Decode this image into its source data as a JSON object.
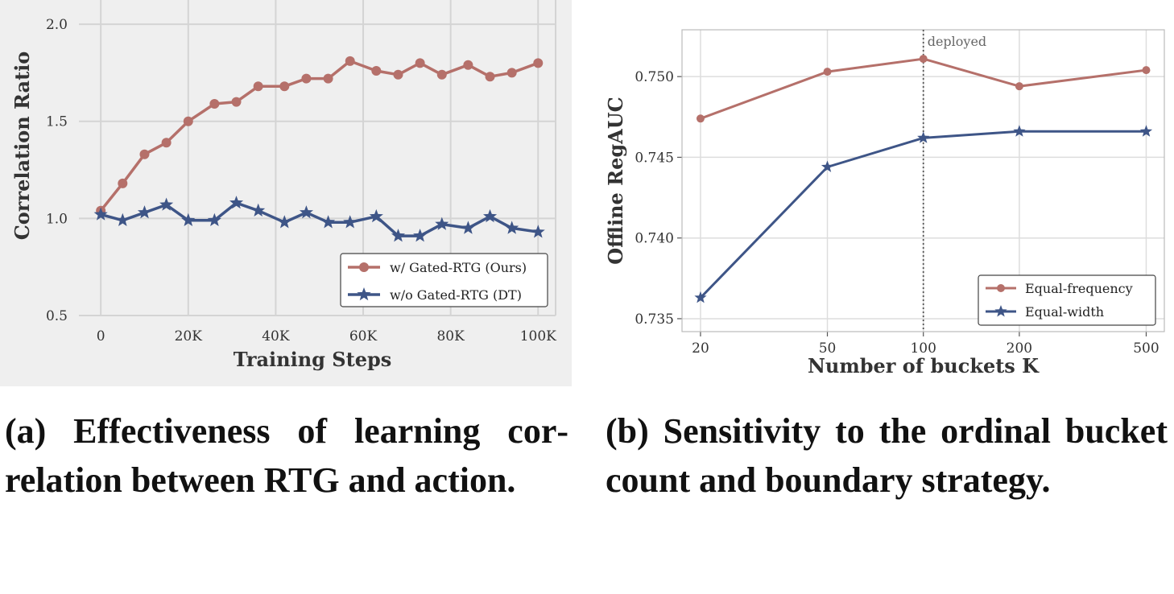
{
  "chart_data": [
    {
      "type": "line",
      "x": [
        0,
        5000,
        10000,
        15000,
        20000,
        26000,
        31000,
        36000,
        42000,
        47000,
        52000,
        57000,
        63000,
        68000,
        73000,
        78000,
        84000,
        89000,
        94000,
        100000
      ],
      "x_ticks": [
        0,
        20000,
        40000,
        60000,
        80000,
        100000
      ],
      "x_tick_labels": [
        "0",
        "20K",
        "40K",
        "60K",
        "80K",
        "100K"
      ],
      "y_ticks": [
        0.5,
        1.0,
        1.5,
        2.0
      ],
      "y_tick_labels": [
        "0.5",
        "1.0",
        "1.5",
        "2.0"
      ],
      "series": [
        {
          "name": "w/ Gated-RTG (Ours)",
          "color": "#b5706a",
          "marker": "circle",
          "values": [
            1.04,
            1.18,
            1.33,
            1.39,
            1.5,
            1.59,
            1.6,
            1.68,
            1.68,
            1.72,
            1.72,
            1.81,
            1.76,
            1.74,
            1.8,
            1.74,
            1.79,
            1.73,
            1.75,
            1.8
          ]
        },
        {
          "name": "w/o Gated-RTG (DT)",
          "color": "#3e5587",
          "marker": "star",
          "values": [
            1.02,
            0.99,
            1.03,
            1.07,
            0.99,
            0.99,
            1.08,
            1.04,
            0.98,
            1.03,
            0.98,
            0.98,
            1.01,
            0.91,
            0.91,
            0.97,
            0.95,
            1.01,
            0.95,
            0.93
          ]
        }
      ],
      "xlabel": "Training Steps",
      "ylabel": "Correlation Ratio",
      "xlim": [
        -5000,
        104000
      ],
      "ylim": [
        0.5,
        2.05
      ],
      "grid": true,
      "legend": "bottom-right"
    },
    {
      "type": "line",
      "x": [
        20,
        50,
        100,
        200,
        500
      ],
      "x_scale": "log",
      "x_tick_labels": [
        "20",
        "50",
        "100",
        "200",
        "500"
      ],
      "y_ticks": [
        0.735,
        0.74,
        0.745,
        0.75
      ],
      "y_tick_labels": [
        "0.735",
        "0.740",
        "0.745",
        "0.750"
      ],
      "series": [
        {
          "name": "Equal-frequency",
          "color": "#b5706a",
          "marker": "circle",
          "values": [
            0.7474,
            0.7503,
            0.7511,
            0.7494,
            0.7504
          ]
        },
        {
          "name": "Equal-width",
          "color": "#3e5587",
          "marker": "star",
          "values": [
            0.7363,
            0.7444,
            0.7462,
            0.7466,
            0.7466
          ]
        }
      ],
      "annotation": {
        "x": 100,
        "label": "deployed"
      },
      "xlabel": "Number of buckets K",
      "ylabel": "Offline RegAUC",
      "xlim": [
        17.5,
        570
      ],
      "ylim": [
        0.7342,
        0.7529
      ],
      "grid": true,
      "legend": "bottom-right"
    }
  ],
  "captions": {
    "a": "(a) Effectiveness of learning cor­relation between RTG and ac­tion.",
    "b": "(b) Sensitivity to the ordinal bucket count and boundary strat­egy."
  }
}
